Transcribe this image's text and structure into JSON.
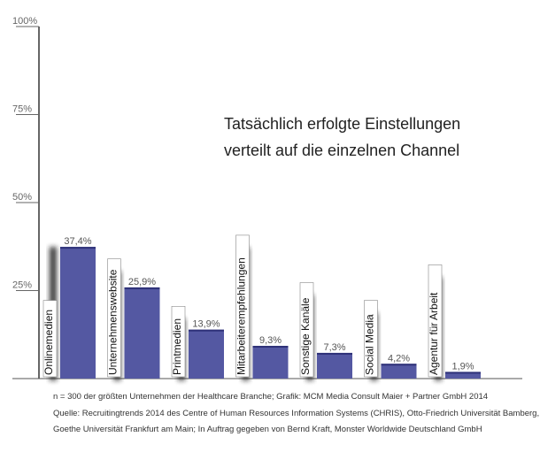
{
  "chart_data": {
    "type": "bar",
    "title_lines": [
      "Tatsächlich erfolgte Einstellungen",
      "verteilt auf die einzelnen Channel"
    ],
    "categories": [
      "Onlinemedien",
      "Unternehmenswebsite",
      "Printmedien",
      "Mitarbeiterempfehlungen",
      "Sonstige Kanäle",
      "Social Media",
      "Agentur für Arbeit"
    ],
    "values": [
      37.4,
      25.9,
      13.9,
      9.3,
      7.3,
      4.2,
      1.9
    ],
    "value_labels": [
      "37,4%",
      "25,9%",
      "13,9%",
      "9,3%",
      "7,3%",
      "4,2%",
      "1,9%"
    ],
    "yticks": [
      25,
      50,
      75,
      100
    ],
    "ytick_labels": [
      "25%",
      "50%",
      "75%",
      "100%"
    ],
    "ylim": [
      0,
      100
    ],
    "grid": false,
    "bar_color": "#5458a2",
    "shadow_color": "#1a1a1a"
  },
  "notes": {
    "sample": "n = 300 der größten Unternehmen der Healthcare Branche; Grafik: MCM Media Consult Maier + Partner GmbH 2014",
    "source_line1": "Quelle: Recruitingtrends 2014 des Centre of Human Resources Information Systems (CHRIS), Otto-Friedrich Universität Bamberg,",
    "source_line2": "Goethe Universität Frankfurt am Main; In Auftrag gegeben von Bernd Kraft, Monster Worldwide Deutschland GmbH"
  }
}
